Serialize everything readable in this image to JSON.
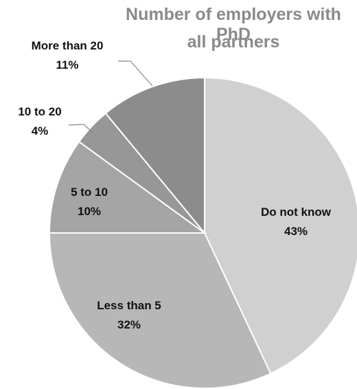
{
  "chart_data": {
    "type": "pie",
    "title_lines": [
      "Number of employers with PhD",
      "all partners"
    ],
    "slices": [
      {
        "label": "Do not know",
        "value": 43,
        "value_label": "43%",
        "color": "#d0d0d0"
      },
      {
        "label": "Less than 5",
        "value": 32,
        "value_label": "32%",
        "color": "#b7b7b7"
      },
      {
        "label": "5 to 10",
        "value": 10,
        "value_label": "10%",
        "color": "#a5a5a5"
      },
      {
        "label": "10 to 20",
        "value": 4,
        "value_label": "4%",
        "color": "#979797"
      },
      {
        "label": "More than 20",
        "value": 11,
        "value_label": "11%",
        "color": "#8c8c8c"
      }
    ],
    "legend": "none",
    "start": "12 o'clock",
    "direction": "clockwise"
  }
}
